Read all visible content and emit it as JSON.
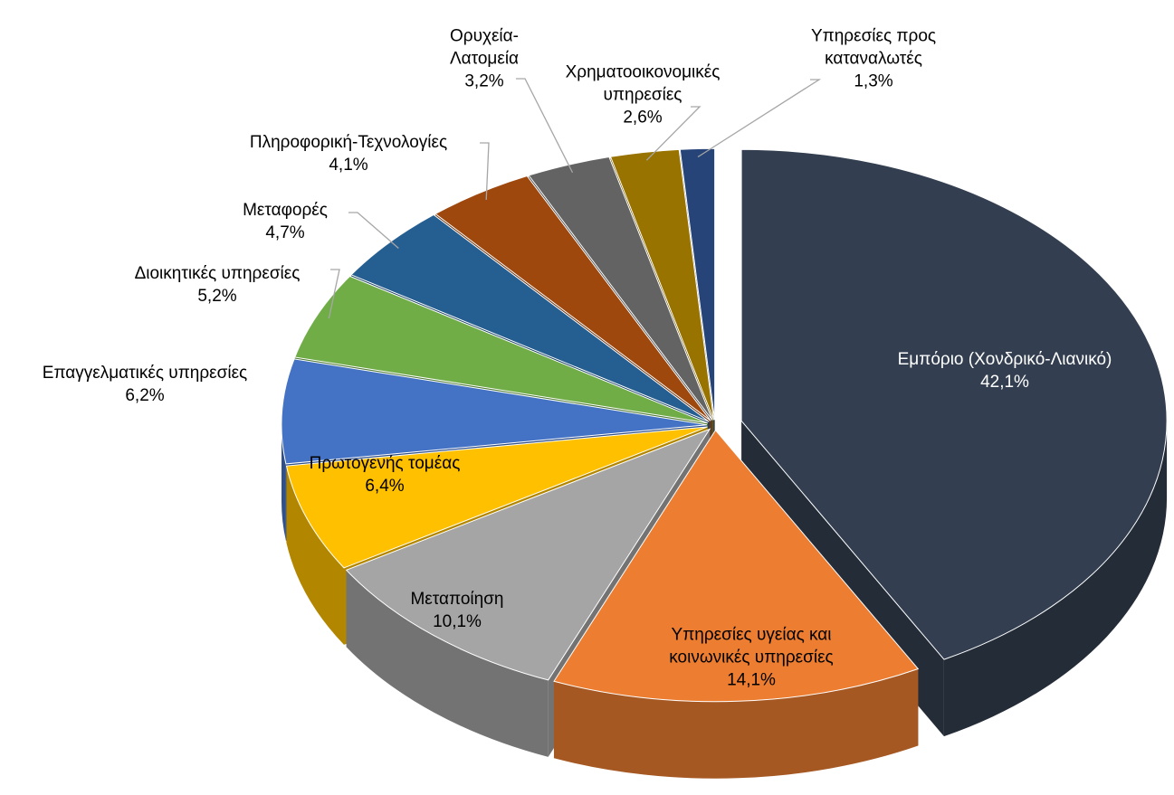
{
  "chart_data": {
    "type": "pie",
    "categories": [
      "Εμπόριο (Χονδρικό-Λιανικό)",
      "Υπηρεσίες υγείας και κοινωνικές υπηρεσίες",
      "Μεταποίηση",
      "Πρωτογενής τομέας",
      "Επαγγελματικές υπηρεσίες",
      "Διοικητικές υπηρεσίες",
      "Μεταφορές",
      "Πληροφορική-Τεχνολογίες",
      "Ορυχεία-Λατομεία",
      "Χρηματοοικονομικές υπηρεσίες",
      "Υπηρεσίες προς καταναλωτές"
    ],
    "values": [
      42.1,
      14.1,
      10.1,
      6.4,
      6.2,
      5.2,
      4.7,
      4.1,
      3.2,
      2.6,
      1.3
    ],
    "value_labels": [
      "42,1%",
      "14,1%",
      "10,1%",
      "6,4%",
      "6,2%",
      "5,2%",
      "4,7%",
      "4,1%",
      "3,2%",
      "2,6%",
      "1,3%"
    ],
    "colors": [
      "#333f50",
      "#ed7d31",
      "#a5a5a5",
      "#ffc000",
      "#4472c4",
      "#70ad47",
      "#255e91",
      "#9e480e",
      "#636363",
      "#997300",
      "#264478"
    ]
  }
}
